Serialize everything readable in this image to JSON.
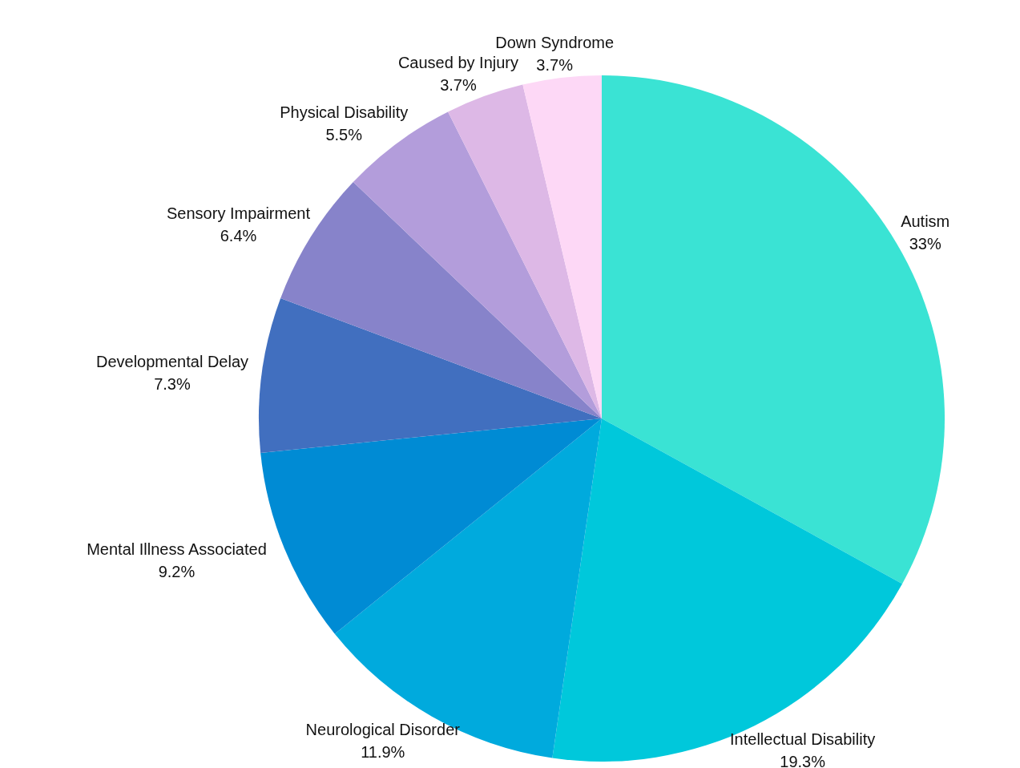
{
  "chart_data": {
    "type": "pie",
    "categories": [
      "Autism",
      "Intellectual Disability",
      "Neurological Disorder",
      "Mental Illness Associated",
      "Developmental Delay",
      "Sensory Impairment",
      "Physical Disability",
      "Caused by Injury",
      "Down Syndrome"
    ],
    "values": [
      33,
      19.3,
      11.9,
      9.2,
      7.3,
      6.4,
      5.5,
      3.7,
      3.7
    ],
    "colors": [
      "#3ae3d4",
      "#00c8db",
      "#00aadd",
      "#008bd4",
      "#416fbf",
      "#8783ca",
      "#b39ddb",
      "#ddb8e6",
      "#fdd8f6"
    ],
    "value_labels": [
      "33%",
      "19.3%",
      "11.9%",
      "9.2%",
      "7.3%",
      "6.4%",
      "5.5%",
      "3.7%",
      "3.7%"
    ]
  }
}
